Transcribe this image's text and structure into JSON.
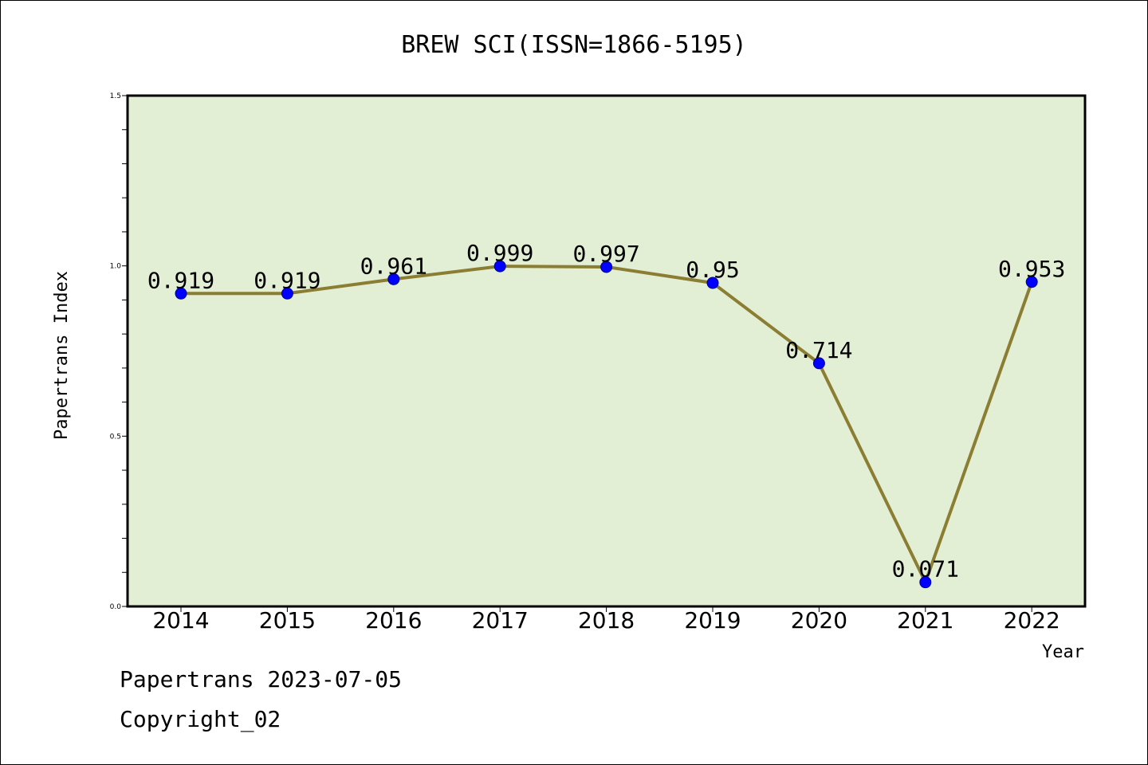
{
  "chart_data": {
    "type": "line",
    "title": "BREW SCI(ISSN=1866-5195)",
    "xlabel": "Year",
    "ylabel": "Papertrans Index",
    "categories": [
      "2014",
      "2015",
      "2016",
      "2017",
      "2018",
      "2019",
      "2020",
      "2021",
      "2022"
    ],
    "series": [
      {
        "values": [
          0.919,
          0.919,
          0.961,
          0.999,
          0.997,
          0.95,
          0.714,
          0.071,
          0.953
        ],
        "labels": [
          "0.919",
          "0.919",
          "0.961",
          "0.999",
          "0.997",
          "0.95",
          "0.714",
          "0.071",
          "0.953"
        ]
      }
    ],
    "ylim": [
      0.0,
      1.5
    ],
    "yticks": [
      "0.0",
      "0.5",
      "1.0",
      "1.5"
    ],
    "grid": false,
    "colors": {
      "plot_background": "#e2efd5",
      "line": "#8b7d32",
      "marker": "#0000ff"
    }
  },
  "footer": {
    "source": "Papertrans 2023-07-05",
    "copyright": "Copyright_02"
  }
}
